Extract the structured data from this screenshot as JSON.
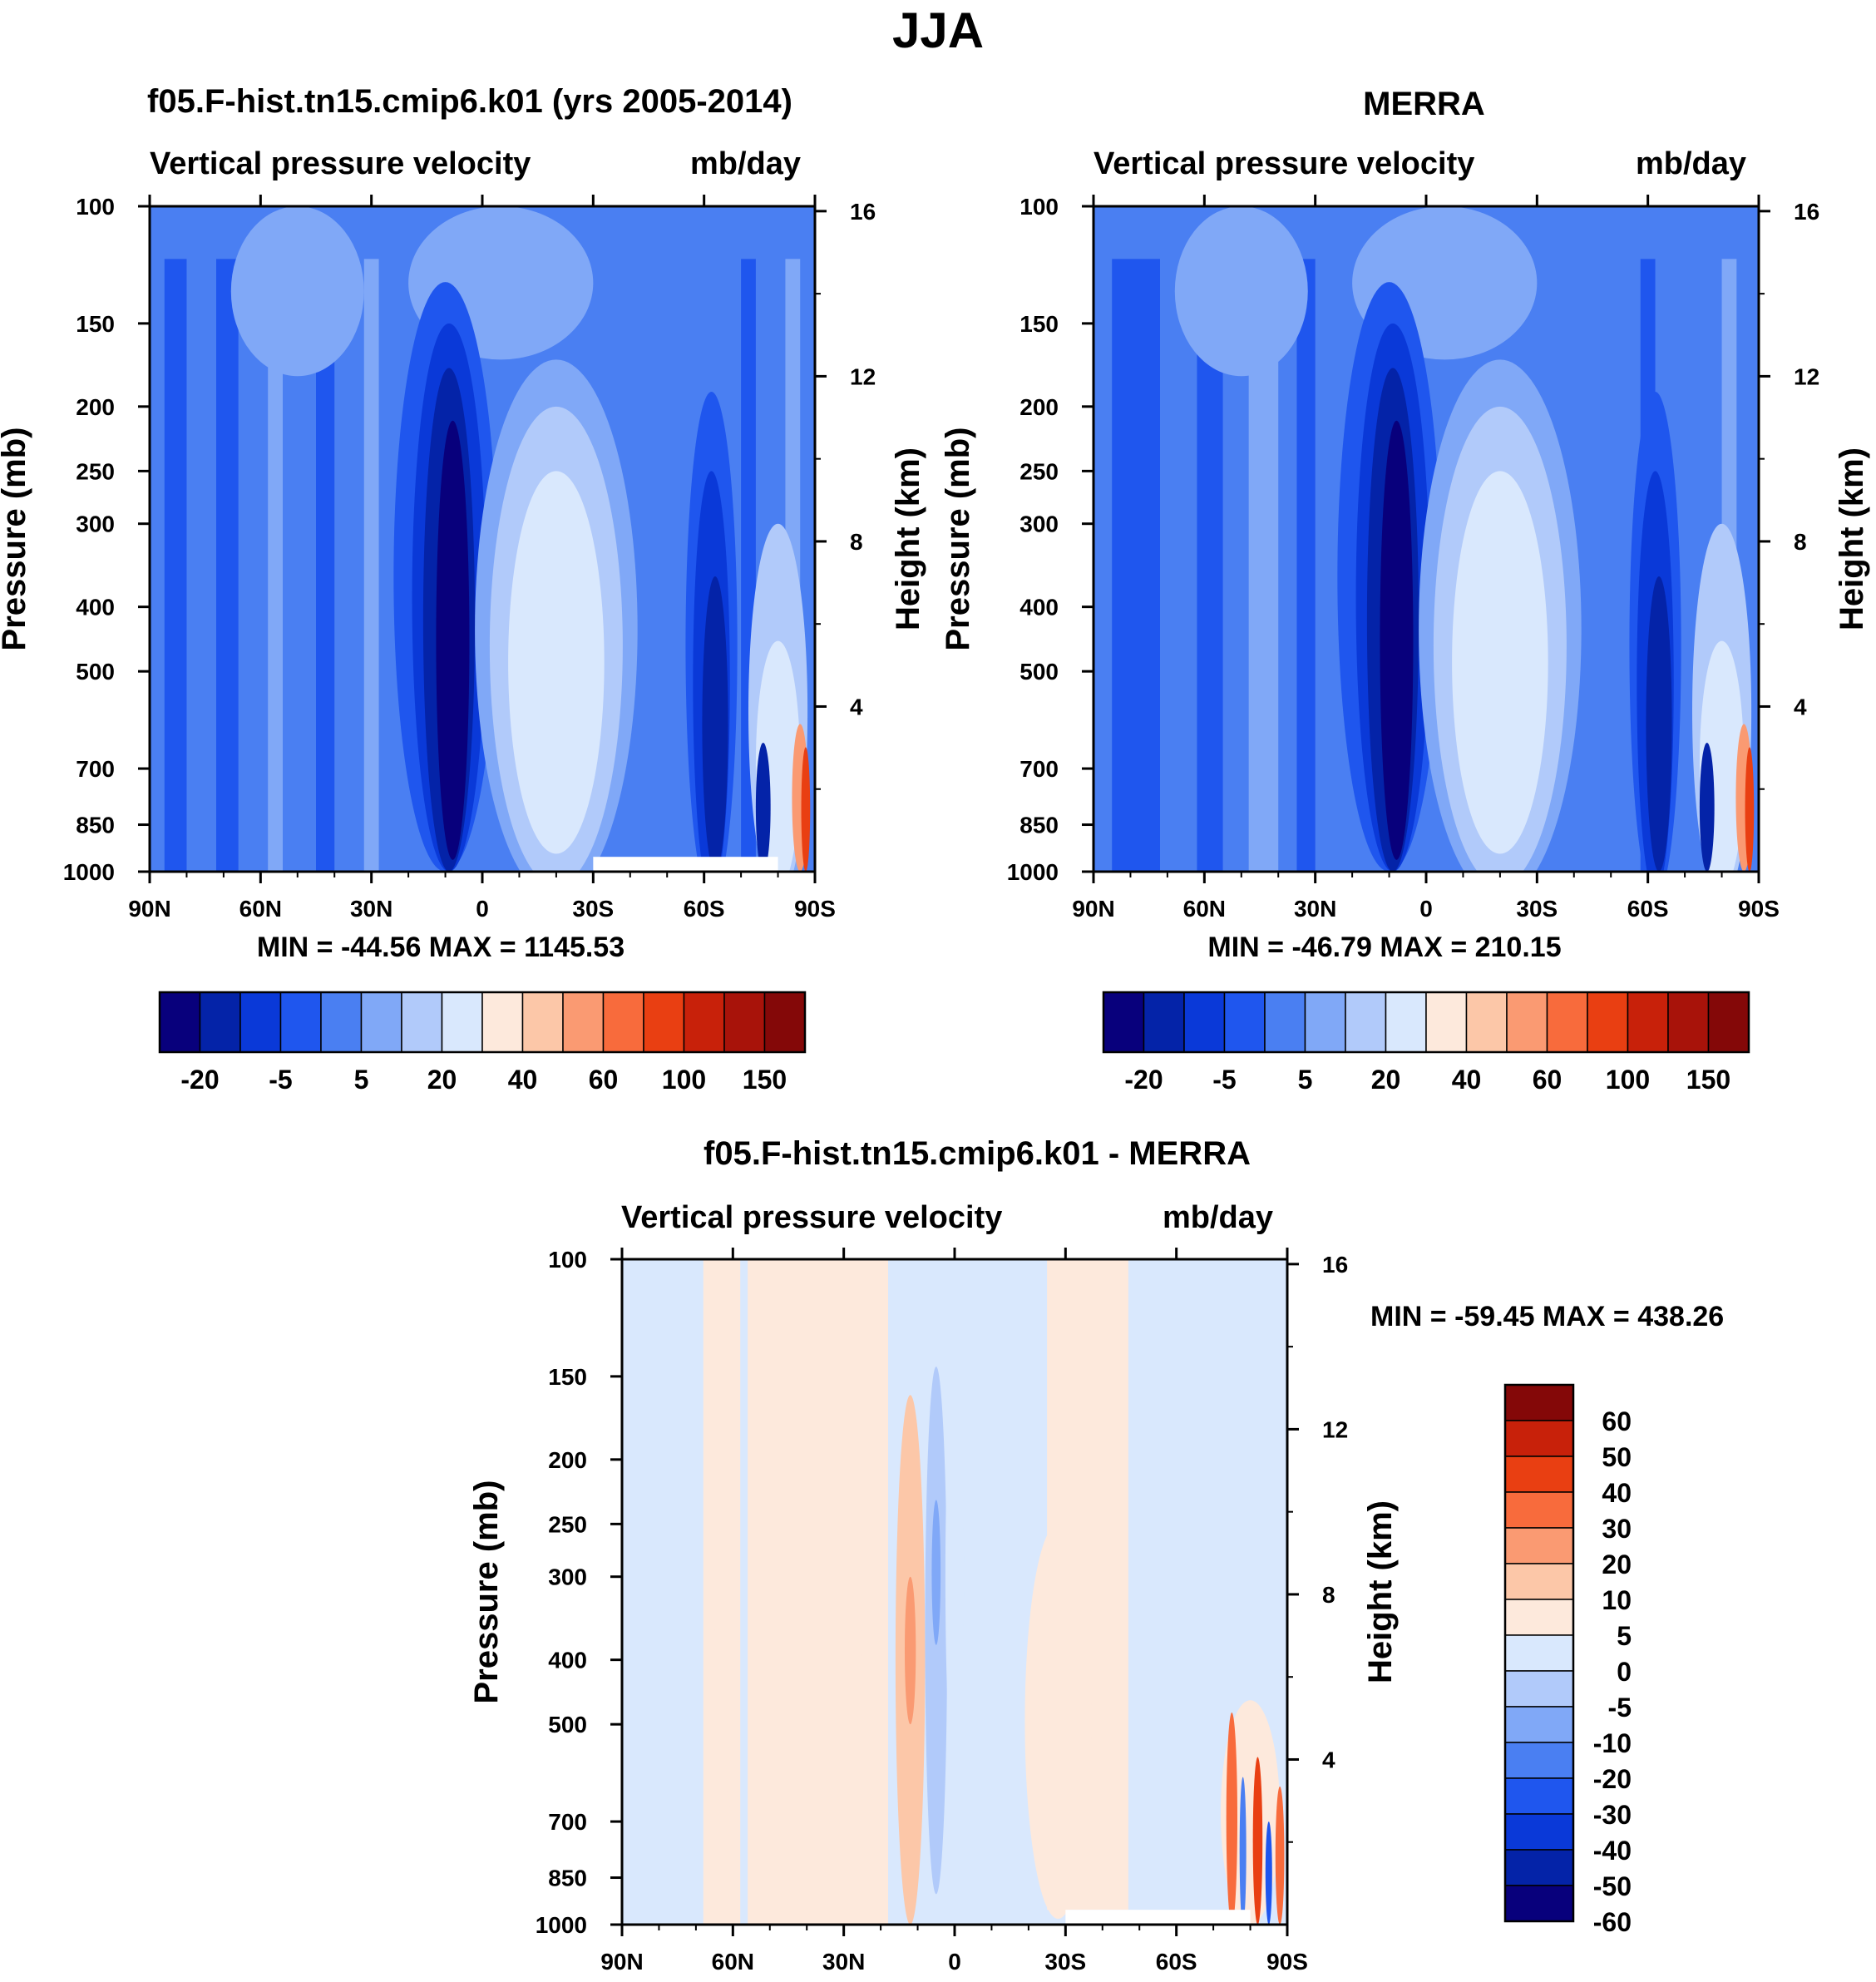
{
  "title": "JJA",
  "colors": {
    "full_field": [
      "#08007c",
      "#0423a8",
      "#0a39d8",
      "#1f56ee",
      "#4a7ff2",
      "#80a8f7",
      "#b1cafa",
      "#d9e8fd",
      "#fde9dc",
      "#fcc7a8",
      "#fa9a72",
      "#f86b3c",
      "#e93f12",
      "#c8210a",
      "#a8130a",
      "#840808"
    ],
    "difference": [
      "#08007c",
      "#0423a8",
      "#0a39d8",
      "#1f56ee",
      "#4a7ff2",
      "#80a8f7",
      "#b1cafa",
      "#d9e8fd",
      "#fde9dc",
      "#fcc7a8",
      "#fa9a72",
      "#f86b3c",
      "#e93f12",
      "#c8210a",
      "#840808"
    ]
  },
  "panels": [
    {
      "id": "model",
      "title": "f05.F-hist.tn15.cmip6.k01 (yrs 2005-2014)",
      "left_string": "Vertical pressure velocity",
      "right_string": "mb/day",
      "stats": "MIN = -44.56  MAX = 1145.53"
    },
    {
      "id": "obs",
      "title": "MERRA",
      "left_string": "Vertical pressure velocity",
      "right_string": "mb/day",
      "stats": "MIN = -46.79  MAX = 210.15"
    },
    {
      "id": "diff",
      "title": "f05.F-hist.tn15.cmip6.k01 - MERRA",
      "left_string": "Vertical pressure velocity",
      "right_string": "mb/day",
      "stats": "MIN = -59.45  MAX = 438.26"
    }
  ],
  "chart_data": [
    {
      "type": "heatmap",
      "title": "f05.F-hist.tn15.cmip6.k01 (yrs 2005-2014)",
      "subtitle_left": "Vertical pressure velocity",
      "subtitle_right": "mb/day",
      "xlabel": "",
      "ylabel": "Pressure (mb)",
      "ylabel_right": "Height (km)",
      "x_ticks": [
        "90N",
        "60N",
        "30N",
        "0",
        "30S",
        "60S",
        "90S"
      ],
      "xlim": [
        90,
        -90
      ],
      "y_ticks": [
        100,
        150,
        200,
        250,
        300,
        400,
        500,
        700,
        850,
        1000
      ],
      "ylim": [
        1000,
        100
      ],
      "y_scale": "log",
      "y_right_ticks": [
        16,
        12,
        8,
        4
      ],
      "min": -44.56,
      "max": 1145.53,
      "colorbar_ticks": [
        "-20",
        "-5",
        "5",
        "20",
        "40",
        "60",
        "100",
        "150"
      ]
    },
    {
      "type": "heatmap",
      "title": "MERRA",
      "subtitle_left": "Vertical pressure velocity",
      "subtitle_right": "mb/day",
      "xlabel": "",
      "ylabel": "Pressure (mb)",
      "ylabel_right": "Height (km)",
      "x_ticks": [
        "90N",
        "60N",
        "30N",
        "0",
        "30S",
        "60S",
        "90S"
      ],
      "xlim": [
        90,
        -90
      ],
      "y_ticks": [
        100,
        150,
        200,
        250,
        300,
        400,
        500,
        700,
        850,
        1000
      ],
      "ylim": [
        1000,
        100
      ],
      "y_scale": "log",
      "y_right_ticks": [
        16,
        12,
        8,
        4
      ],
      "min": -46.79,
      "max": 210.15,
      "colorbar_ticks": [
        "-20",
        "-5",
        "5",
        "20",
        "40",
        "60",
        "100",
        "150"
      ]
    },
    {
      "type": "heatmap",
      "title": "f05.F-hist.tn15.cmip6.k01 - MERRA",
      "subtitle_left": "Vertical pressure velocity",
      "subtitle_right": "mb/day",
      "xlabel": "",
      "ylabel": "Pressure (mb)",
      "ylabel_right": "Height (km)",
      "x_ticks": [
        "90N",
        "60N",
        "30N",
        "0",
        "30S",
        "60S",
        "90S"
      ],
      "xlim": [
        90,
        -90
      ],
      "y_ticks": [
        100,
        150,
        200,
        250,
        300,
        400,
        500,
        700,
        850,
        1000
      ],
      "ylim": [
        1000,
        100
      ],
      "y_scale": "log",
      "y_right_ticks": [
        16,
        12,
        8,
        4
      ],
      "min": -59.45,
      "max": 438.26,
      "colorbar_ticks": [
        "60",
        "50",
        "40",
        "30",
        "20",
        "10",
        "5",
        "0",
        "-5",
        "-10",
        "-20",
        "-30",
        "-40",
        "-50",
        "-60"
      ]
    }
  ]
}
